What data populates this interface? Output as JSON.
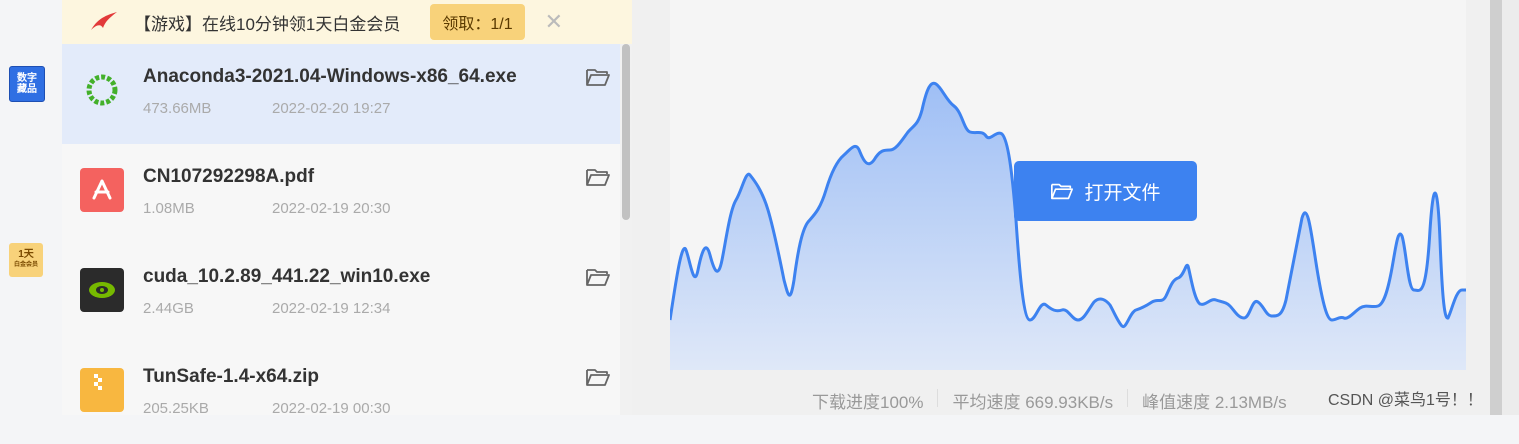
{
  "rail": {
    "digital_badge": [
      "数字",
      "藏品"
    ],
    "vip_badge": [
      "1天",
      "白金会员"
    ]
  },
  "promo": {
    "text": "【游戏】在线10分钟领1天白金会员",
    "claim_label": "领取：1/1",
    "close_glyph": "✕"
  },
  "files": [
    {
      "name": "Anaconda3-2021.04-Windows-x86_64.exe",
      "size": "473.66MB",
      "date": "2022-02-20 19:27",
      "icon": "anaconda-icon",
      "color": "#43b02a"
    },
    {
      "name": "CN107292298A.pdf",
      "size": "1.08MB",
      "date": "2022-02-19 20:30",
      "icon": "pdf-icon",
      "color": "#f4625f"
    },
    {
      "name": "cuda_10.2.89_441.22_win10.exe",
      "size": "2.44GB",
      "date": "2022-02-19 12:34",
      "icon": "nvidia-icon",
      "color": "#76b900"
    },
    {
      "name": "TunSafe-1.4-x64.zip",
      "size": "205.25KB",
      "date": "2022-02-19 00:30",
      "icon": "zip-icon",
      "color": "#f8b740"
    }
  ],
  "chart": {
    "open_file_label": "打开文件",
    "progress": "下载进度100%",
    "avg_speed": "平均速度 669.93KB/s",
    "peak_speed": "峰值速度 2.13MB/s",
    "accent": "#3d82f0"
  },
  "watermark": "CSDN @菜鸟1号！！"
}
